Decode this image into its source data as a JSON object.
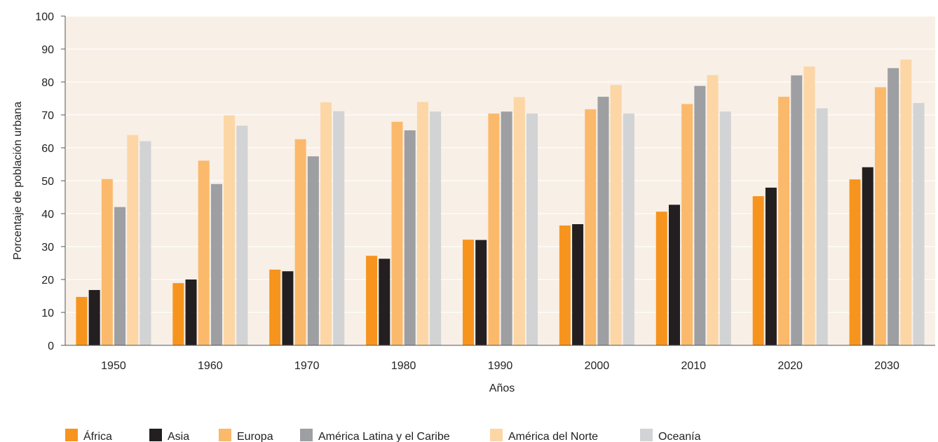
{
  "chart_data": {
    "type": "bar",
    "xlabel": "Años",
    "ylabel": "Porcentaje de población urbana",
    "ylim": [
      0,
      100
    ],
    "yticks": [
      0,
      10,
      20,
      30,
      40,
      50,
      60,
      70,
      80,
      90,
      100
    ],
    "categories": [
      "1950",
      "1960",
      "1970",
      "1980",
      "1990",
      "2000",
      "2010",
      "2020",
      "2030"
    ],
    "grid": true,
    "legend_position": "bottom",
    "plot_background": "#f8efe6",
    "series": [
      {
        "name": "África",
        "color": "#f7941d",
        "values": [
          14.7,
          18.9,
          23.0,
          27.2,
          32.1,
          36.4,
          40.6,
          45.3,
          50.4
        ]
      },
      {
        "name": "Asia",
        "color": "#231f20",
        "values": [
          16.8,
          20.0,
          22.5,
          26.3,
          32.0,
          36.8,
          42.7,
          47.9,
          54.1
        ]
      },
      {
        "name": "Europa",
        "color": "#fbb96b",
        "values": [
          50.5,
          56.1,
          62.6,
          67.9,
          70.4,
          71.7,
          73.3,
          75.5,
          78.4
        ]
      },
      {
        "name": "América Latina y el Caribe",
        "color": "#9d9fa2",
        "values": [
          42.0,
          49.0,
          57.4,
          65.3,
          71.0,
          75.5,
          78.8,
          82.0,
          84.2
        ]
      },
      {
        "name": "América del Norte",
        "color": "#fdd6a6",
        "values": [
          63.9,
          69.9,
          73.8,
          73.9,
          75.4,
          79.1,
          82.1,
          84.7,
          86.8
        ]
      },
      {
        "name": "Oceanía",
        "color": "#d1d3d4",
        "values": [
          62.0,
          66.7,
          71.1,
          71.0,
          70.4,
          70.4,
          71.0,
          72.0,
          73.6
        ]
      }
    ]
  }
}
